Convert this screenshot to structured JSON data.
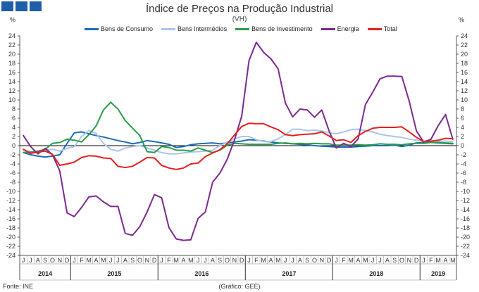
{
  "header": {
    "title": "Índice de Preços na Produção Industrial",
    "subtitle": "(VH)",
    "unit_left": "%",
    "unit_right": "%"
  },
  "footer": {
    "source": "Fonte: INE",
    "credit": "(Gráfico: GEE)"
  },
  "chart_data": {
    "type": "line",
    "title": "Índice de Preços na Produção Industrial",
    "subtitle": "(VH)",
    "ylabel": "%",
    "ylim": [
      -24,
      24
    ],
    "yticks": [
      -24,
      -22,
      -20,
      -18,
      -16,
      -14,
      -12,
      -10,
      -8,
      -6,
      -4,
      -2,
      0,
      2,
      4,
      6,
      8,
      10,
      12,
      14,
      16,
      18,
      20,
      22,
      24
    ],
    "grid": false,
    "legend_position": "top",
    "x": [
      "J",
      "J",
      "A",
      "S",
      "O",
      "N",
      "D",
      "J",
      "F",
      "M",
      "A",
      "M",
      "J",
      "J",
      "A",
      "S",
      "O",
      "N",
      "D",
      "J",
      "F",
      "M",
      "A",
      "M",
      "J",
      "J",
      "A",
      "S",
      "O",
      "N",
      "D",
      "J",
      "F",
      "M",
      "A",
      "M",
      "J",
      "J",
      "A",
      "S",
      "O",
      "N",
      "D",
      "J",
      "F",
      "M",
      "A",
      "M",
      "J",
      "J",
      "A",
      "S",
      "O",
      "N",
      "D",
      "J",
      "F",
      "M",
      "A",
      "M"
    ],
    "year_labels": [
      {
        "label": "2014",
        "start": 0,
        "end": 6
      },
      {
        "label": "2015",
        "start": 7,
        "end": 18
      },
      {
        "label": "2016",
        "start": 19,
        "end": 30
      },
      {
        "label": "2017",
        "start": 31,
        "end": 42
      },
      {
        "label": "2018",
        "start": 43,
        "end": 54
      },
      {
        "label": "2019",
        "start": 55,
        "end": 59
      }
    ],
    "series": [
      {
        "name": "Bens de Consumo",
        "color": "#1f6cb5",
        "values": [
          -1.5,
          -2.0,
          -2.3,
          -2.5,
          -2.3,
          -2.0,
          0.5,
          2.8,
          3.0,
          2.6,
          2.2,
          1.9,
          1.5,
          1.1,
          0.8,
          0.4,
          0.7,
          1.1,
          0.9,
          0.6,
          0.3,
          -0.4,
          -0.2,
          0.2,
          0.4,
          0.5,
          0.6,
          0.4,
          0.6,
          0.8,
          1.0,
          1.3,
          1.2,
          1.0,
          0.8,
          0.6,
          0.5,
          0.4,
          0.3,
          0.2,
          0.0,
          -0.1,
          -0.2,
          -0.3,
          -0.3,
          -0.3,
          -0.2,
          -0.1,
          0.0,
          0.0,
          0.0,
          0.1,
          -0.2,
          0.1,
          0.6,
          0.7,
          0.7,
          0.6,
          0.5,
          0.4
        ]
      },
      {
        "name": "Bens Intermédios",
        "color": "#a9c6ea",
        "values": [
          -1.0,
          -1.3,
          -1.4,
          -1.0,
          -0.8,
          -1.2,
          -0.6,
          -0.2,
          2.0,
          3.3,
          2.7,
          0.5,
          -0.8,
          -1.2,
          -0.5,
          -0.2,
          0.0,
          -0.5,
          -1.0,
          -1.5,
          -1.8,
          -1.8,
          -1.6,
          -1.4,
          -1.3,
          -1.2,
          -1.0,
          0.0,
          0.8,
          1.5,
          2.0,
          2.0,
          1.3,
          0.9,
          0.9,
          1.5,
          2.4,
          3.6,
          3.6,
          3.3,
          3.4,
          3.2,
          2.8,
          2.6,
          3.0,
          3.5,
          3.6,
          3.3,
          3.0,
          2.5,
          2.2,
          2.0,
          1.8,
          1.4,
          1.2,
          1.0,
          1.0,
          1.0,
          1.0,
          0.9
        ]
      },
      {
        "name": "Bens de Investimento",
        "color": "#2a9c48",
        "values": [
          -1.5,
          -1.4,
          -1.2,
          -0.8,
          0.5,
          0.7,
          1.4,
          1.2,
          0.8,
          2.4,
          4.3,
          7.8,
          9.5,
          8.0,
          5.5,
          3.8,
          2.2,
          -1.3,
          -1.5,
          -0.2,
          -0.4,
          -1.0,
          -1.0,
          -1.2,
          -0.5,
          -1.0,
          -1.5,
          -1.0,
          0.1,
          0.5,
          0.4,
          0.3,
          0.3,
          0.3,
          0.3,
          0.5,
          0.6,
          0.4,
          0.5,
          0.4,
          0.5,
          0.4,
          0.4,
          0.1,
          0.1,
          0.1,
          0.2,
          0.1,
          0.2,
          0.4,
          0.3,
          0.3,
          0.2,
          0.4,
          0.5,
          0.5,
          0.7,
          0.7,
          0.6,
          0.5
        ]
      },
      {
        "name": "Energia",
        "color": "#7b2a8e",
        "values": [
          2.2,
          -0.2,
          -1.8,
          -0.6,
          -2.0,
          -5.5,
          -14.7,
          -15.5,
          -13.5,
          -11.2,
          -11.0,
          -12.3,
          -13.3,
          -13.3,
          -19.2,
          -19.6,
          -17.7,
          -14.5,
          -10.7,
          -11.4,
          -17.9,
          -20.4,
          -20.7,
          -20.6,
          -15.9,
          -14.5,
          -8.0,
          -6.0,
          -3.0,
          1.2,
          6.5,
          18.6,
          22.6,
          20.4,
          19.0,
          16.8,
          9.3,
          6.3,
          8.0,
          7.8,
          6.2,
          7.8,
          3.2,
          -0.5,
          0.5,
          -0.2,
          1.5,
          9.0,
          11.7,
          14.6,
          15.2,
          15.2,
          15.1,
          9.8,
          3.2,
          0.8,
          1.4,
          4.4,
          6.8,
          1.4
        ]
      },
      {
        "name": "Total",
        "color": "#e5201f",
        "values": [
          -0.8,
          -1.7,
          -1.4,
          -1.2,
          -1.9,
          -4.3,
          -4.0,
          -3.6,
          -2.6,
          -2.2,
          -2.3,
          -2.7,
          -2.8,
          -4.5,
          -4.8,
          -4.5,
          -3.6,
          -2.6,
          -2.7,
          -4.3,
          -4.9,
          -5.2,
          -4.9,
          -4.0,
          -3.8,
          -2.4,
          -1.6,
          -0.9,
          0.4,
          2.3,
          4.2,
          4.9,
          4.8,
          4.8,
          4.1,
          3.5,
          2.4,
          2.2,
          2.4,
          2.5,
          2.6,
          3.0,
          2.1,
          1.1,
          1.3,
          0.7,
          2.2,
          3.1,
          3.8,
          4.0,
          4.0,
          4.0,
          4.1,
          3.0,
          1.8,
          0.9,
          1.0,
          1.2,
          1.6,
          1.5
        ]
      }
    ]
  }
}
